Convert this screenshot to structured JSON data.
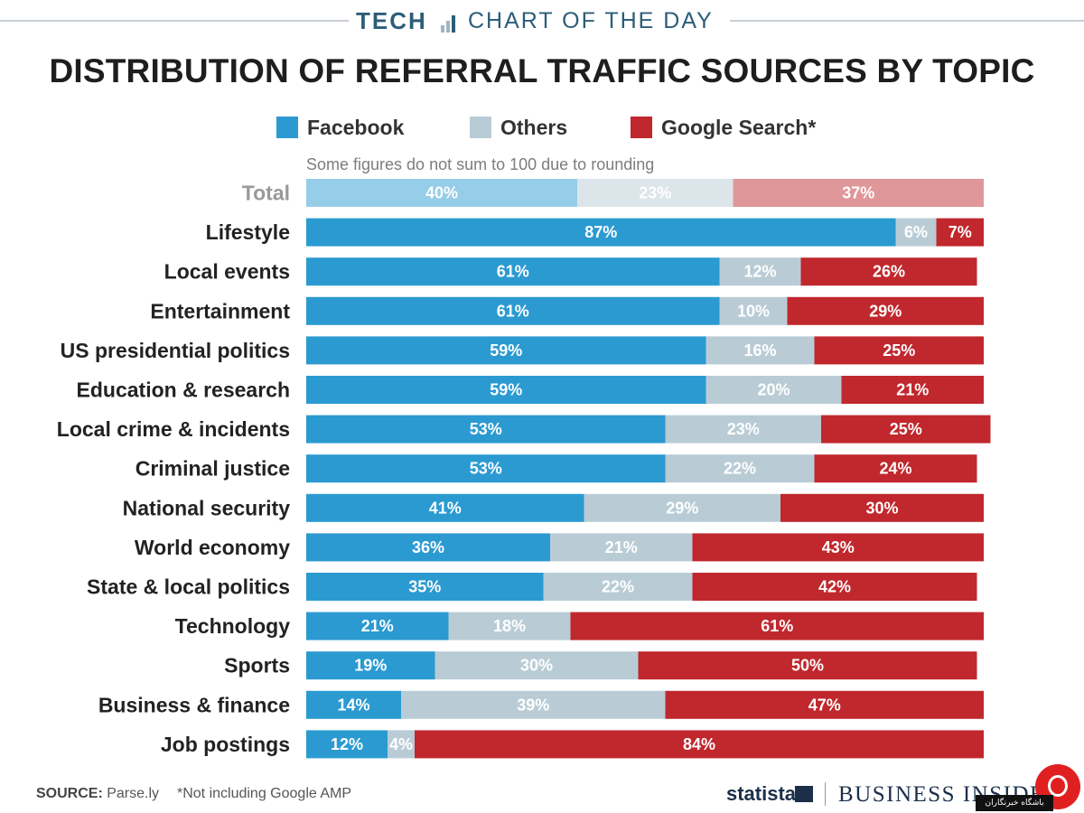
{
  "header": {
    "tech": "TECH",
    "subtitle": "CHART OF THE DAY"
  },
  "chart_data": {
    "type": "bar",
    "orientation": "horizontal",
    "stacked": true,
    "title": "DISTRIBUTION OF REFERRAL TRAFFIC SOURCES BY TOPIC",
    "note": "Some figures do not sum to 100 due to rounding",
    "legend_position": "top",
    "categories": [
      "Total",
      "Lifestyle",
      "Local events",
      "Entertainment",
      "US presidential politics",
      "Education & research",
      "Local crime & incidents",
      "Criminal justice",
      "National security",
      "World economy",
      "State & local politics",
      "Technology",
      "Sports",
      "Business & finance",
      "Job postings"
    ],
    "series": [
      {
        "name": "Facebook",
        "color": "#2b9ad1",
        "total_color": "#96cde8",
        "values": [
          40,
          87,
          61,
          61,
          59,
          59,
          53,
          53,
          41,
          36,
          35,
          21,
          19,
          14,
          12
        ]
      },
      {
        "name": "Others",
        "color": "#b9ccd6",
        "total_color": "#dce5ea",
        "values": [
          23,
          6,
          12,
          10,
          16,
          20,
          23,
          22,
          29,
          21,
          22,
          18,
          30,
          39,
          4
        ]
      },
      {
        "name": "Google Search*",
        "color": "#c0282d",
        "total_color": "#e09799",
        "values": [
          37,
          7,
          26,
          29,
          25,
          21,
          25,
          24,
          30,
          43,
          42,
          61,
          50,
          47,
          84
        ]
      }
    ],
    "value_suffix": "%",
    "total_category_color": "#999999",
    "category_color": "#222222"
  },
  "footer": {
    "source_label": "SOURCE:",
    "source": "Parse.ly",
    "note": "*Not including Google AMP",
    "brand1": "statista",
    "brand2": "BUSINESS INSIDER"
  },
  "watermark": {
    "text": "باشگاه خبرنگاران"
  }
}
